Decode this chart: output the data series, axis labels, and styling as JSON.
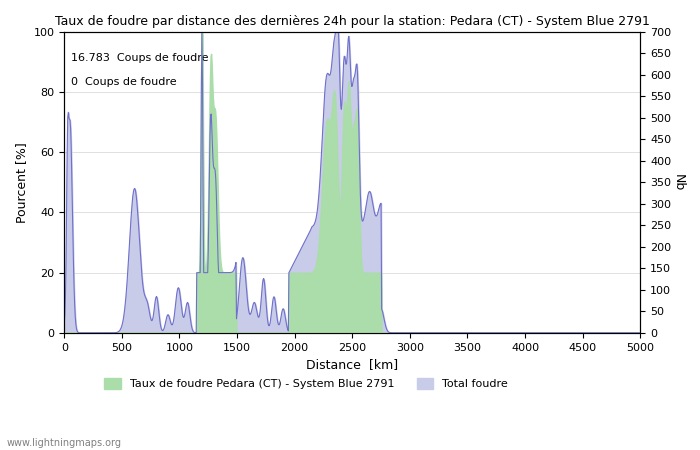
{
  "title": "Taux de foudre par distance des dernières 24h pour la station: Pedara (CT) - System Blue 2791",
  "xlabel": "Distance  [km]",
  "ylabel_left": "Pourcent [%]",
  "ylabel_right": "Nb",
  "xlim": [
    0,
    5000
  ],
  "ylim_left": [
    0,
    100
  ],
  "ylim_right": [
    0,
    700
  ],
  "annotation_line1": "16.783  Coups de foudre",
  "annotation_line2": "0  Coups de foudre",
  "watermark": "www.lightningmaps.org",
  "legend_green": "Taux de foudre Pedara (CT) - System Blue 2791",
  "legend_blue": "Total foudre",
  "color_green": "#aaddaa",
  "color_blue": "#c8cce8",
  "line_color": "#7070cc",
  "background_color": "#ffffff",
  "xticks": [
    0,
    500,
    1000,
    1500,
    2000,
    2500,
    3000,
    3500,
    4000,
    4500,
    5000
  ],
  "yticks_left": [
    0,
    20,
    40,
    60,
    80,
    100
  ],
  "yticks_right": [
    0,
    50,
    100,
    150,
    200,
    250,
    300,
    350,
    400,
    450,
    500,
    550,
    600,
    650,
    700
  ]
}
